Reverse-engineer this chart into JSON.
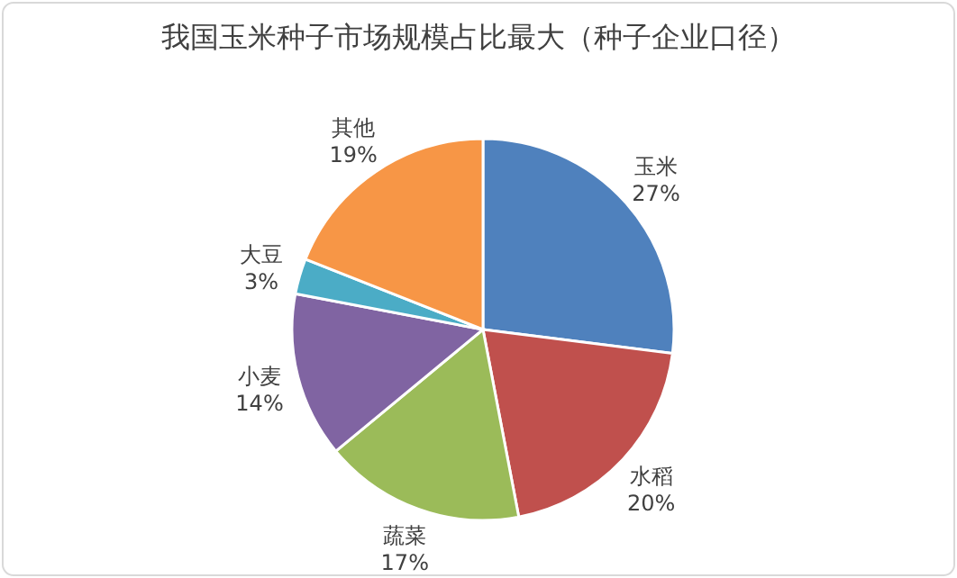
{
  "chart_data": {
    "type": "pie",
    "title": "我国玉米种子市场规模占比最大（种子企业口径）",
    "categories": [
      "玉米",
      "水稻",
      "蔬菜",
      "小麦",
      "大豆",
      "其他"
    ],
    "values": [
      27,
      20,
      17,
      14,
      3,
      19
    ],
    "colors": [
      "#4f81bd",
      "#c0504d",
      "#9bbb59",
      "#8064a2",
      "#4bacc6",
      "#f79646"
    ],
    "value_labels": [
      "27%",
      "20%",
      "17%",
      "14%",
      "3%",
      "19%"
    ]
  }
}
